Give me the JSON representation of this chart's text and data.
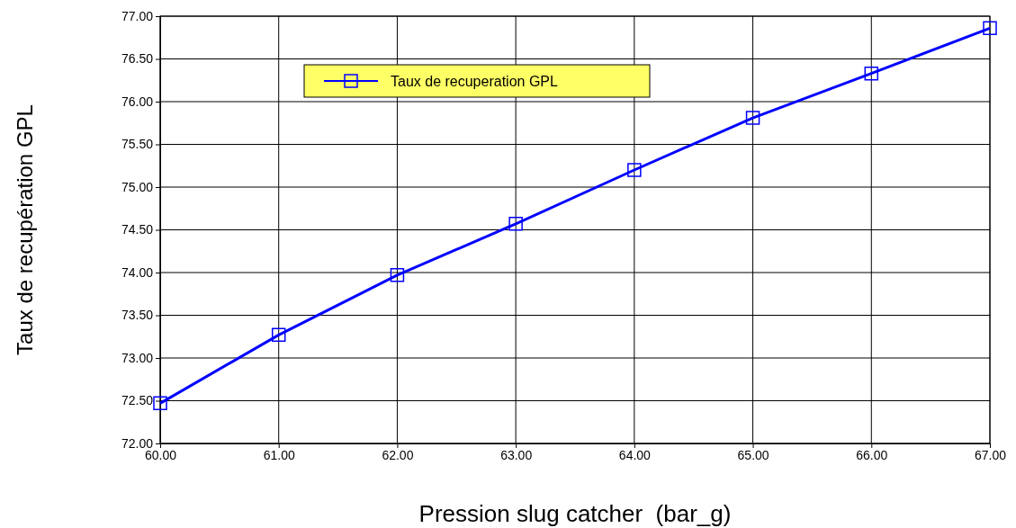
{
  "chart_data": {
    "type": "line",
    "xlabel": "Pression slug catcher  (bar_g)",
    "ylabel": "Taux de recupération GPL",
    "x": [
      60,
      61,
      62,
      63,
      64,
      65,
      66,
      67
    ],
    "series": [
      {
        "name": "Taux de recuperation GPL",
        "color": "#0000ff",
        "values": [
          72.47,
          73.27,
          73.97,
          74.57,
          75.2,
          75.81,
          76.33,
          76.86
        ]
      }
    ],
    "xlim": [
      60,
      67
    ],
    "xticks": [
      {
        "value": 60,
        "label": "60.00"
      },
      {
        "value": 61,
        "label": "61.00"
      },
      {
        "value": 62,
        "label": "62.00"
      },
      {
        "value": 63,
        "label": "63.00"
      },
      {
        "value": 64,
        "label": "64.00"
      },
      {
        "value": 65,
        "label": "65.00"
      },
      {
        "value": 66,
        "label": "66.00"
      },
      {
        "value": 67,
        "label": "67.00"
      }
    ],
    "ylim": [
      72,
      77
    ],
    "yticks": [
      {
        "value": 72,
        "label": "72.00"
      },
      {
        "value": 72.5,
        "label": "72.50"
      },
      {
        "value": 73,
        "label": "73.00"
      },
      {
        "value": 73.5,
        "label": "73.50"
      },
      {
        "value": 74,
        "label": "74.00"
      },
      {
        "value": 74.5,
        "label": "74.50"
      },
      {
        "value": 75,
        "label": "75.00"
      },
      {
        "value": 75.5,
        "label": "75.50"
      },
      {
        "value": 76,
        "label": "76.00"
      },
      {
        "value": 76.5,
        "label": "76.50"
      },
      {
        "value": 77,
        "label": "77.00"
      }
    ],
    "grid": true,
    "legend": "top left",
    "marker": "square",
    "line_style": "solid"
  }
}
